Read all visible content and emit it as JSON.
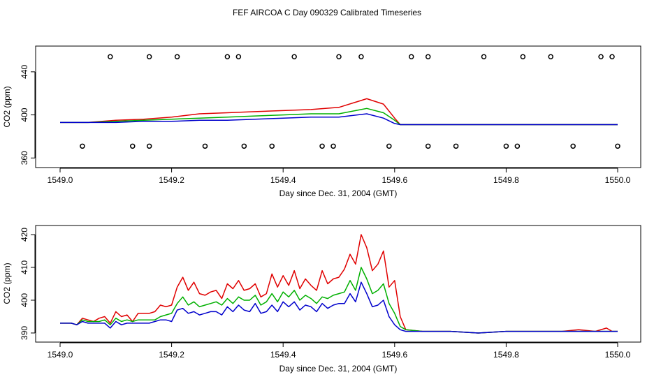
{
  "title": "FEF AIRCOA C  Day 090329  Calibrated Timeseries",
  "colors": {
    "red": "#e00000",
    "green": "#00b000",
    "blue": "#0000cc",
    "axis": "#000000"
  },
  "chart_data": [
    {
      "type": "line",
      "xlabel": "Day since Dec. 31, 2004 (GMT)",
      "ylabel": "CO2 (ppm)",
      "xlim": [
        1549.0,
        1550.0
      ],
      "ylim": [
        355,
        460
      ],
      "xticks": [
        1549.0,
        1549.2,
        1549.4,
        1549.6,
        1549.8,
        1550.0
      ],
      "xtick_labels": [
        "1549.0",
        "1549.2",
        "1549.4",
        "1549.6",
        "1549.8",
        "1550.0"
      ],
      "yticks": [
        360,
        400,
        440
      ],
      "ytick_labels": [
        "360",
        "400",
        "440"
      ],
      "x": [
        1549.0,
        1549.05,
        1549.1,
        1549.15,
        1549.2,
        1549.25,
        1549.3,
        1549.35,
        1549.4,
        1549.45,
        1549.5,
        1549.55,
        1549.58,
        1549.6,
        1549.61,
        1549.7,
        1549.8,
        1549.9,
        1550.0
      ],
      "series": [
        {
          "name": "red",
          "color": "red",
          "values": [
            393,
            393,
            395,
            396,
            398,
            401,
            402,
            403,
            404,
            405,
            407,
            415,
            410,
            397,
            391,
            391,
            391,
            391,
            391
          ]
        },
        {
          "name": "green",
          "color": "green",
          "values": [
            393,
            393,
            394,
            395,
            396,
            397,
            398,
            399,
            400,
            401,
            401,
            406,
            402,
            395,
            391,
            391,
            391,
            391,
            391
          ]
        },
        {
          "name": "blue",
          "color": "blue",
          "values": [
            393,
            393,
            393,
            394,
            394,
            395,
            395,
            396,
            397,
            398,
            398,
            401,
            397,
            392,
            391,
            391,
            391,
            391,
            391
          ]
        }
      ],
      "markers_top": {
        "y": 454,
        "x": [
          1549.09,
          1549.16,
          1549.21,
          1549.3,
          1549.32,
          1549.42,
          1549.5,
          1549.54,
          1549.63,
          1549.66,
          1549.76,
          1549.83,
          1549.88,
          1549.97,
          1549.99
        ]
      },
      "markers_bottom": {
        "y": 371,
        "x": [
          1549.04,
          1549.13,
          1549.16,
          1549.26,
          1549.33,
          1549.38,
          1549.47,
          1549.49,
          1549.59,
          1549.66,
          1549.71,
          1549.8,
          1549.82,
          1549.92,
          1550.0
        ]
      }
    },
    {
      "type": "line",
      "xlabel": "Day since Dec. 31, 2004 (GMT)",
      "ylabel": "CO2 (ppm)",
      "xlim": [
        1549.0,
        1550.0
      ],
      "ylim": [
        388.5,
        421.5
      ],
      "xticks": [
        1549.0,
        1549.2,
        1549.4,
        1549.6,
        1549.8,
        1550.0
      ],
      "xtick_labels": [
        "1549.0",
        "1549.2",
        "1549.4",
        "1549.6",
        "1549.8",
        "1550.0"
      ],
      "yticks": [
        390,
        400,
        410,
        420
      ],
      "ytick_labels": [
        "390",
        "400",
        "410",
        "420"
      ],
      "x": [
        1549.0,
        1549.02,
        1549.03,
        1549.04,
        1549.05,
        1549.06,
        1549.07,
        1549.08,
        1549.09,
        1549.1,
        1549.11,
        1549.12,
        1549.13,
        1549.14,
        1549.15,
        1549.16,
        1549.17,
        1549.18,
        1549.19,
        1549.2,
        1549.21,
        1549.22,
        1549.23,
        1549.24,
        1549.25,
        1549.26,
        1549.27,
        1549.28,
        1549.29,
        1549.3,
        1549.31,
        1549.32,
        1549.33,
        1549.34,
        1549.35,
        1549.36,
        1549.37,
        1549.38,
        1549.39,
        1549.4,
        1549.41,
        1549.42,
        1549.43,
        1549.44,
        1549.45,
        1549.46,
        1549.47,
        1549.48,
        1549.49,
        1549.5,
        1549.51,
        1549.52,
        1549.53,
        1549.54,
        1549.55,
        1549.56,
        1549.57,
        1549.58,
        1549.59,
        1549.6,
        1549.61,
        1549.62,
        1549.65,
        1549.7,
        1549.75,
        1549.8,
        1549.85,
        1549.9,
        1549.93,
        1549.96,
        1549.98,
        1549.99,
        1550.0
      ],
      "series": [
        {
          "name": "red",
          "color": "red",
          "values": [
            393,
            393,
            392.5,
            394.5,
            394,
            393.5,
            394.5,
            395,
            393,
            396.5,
            395,
            395.5,
            393.5,
            396,
            396,
            396,
            396.5,
            398.5,
            398,
            398.5,
            404,
            407,
            403,
            405.5,
            402,
            401.5,
            402.5,
            403,
            400.5,
            405,
            403.5,
            406,
            403,
            403.5,
            405,
            401,
            402,
            408,
            404,
            407.5,
            404.5,
            409,
            403.5,
            406.5,
            404.5,
            403,
            409,
            405,
            406.5,
            407,
            409.5,
            414,
            411,
            420,
            416,
            409,
            411,
            415,
            404,
            406,
            395,
            391,
            390.5,
            390.5,
            390,
            390.5,
            390.5,
            390.5,
            391,
            390.5,
            391.5,
            390.5,
            390.5
          ]
        },
        {
          "name": "green",
          "color": "green",
          "values": [
            393,
            393,
            392.5,
            394,
            393.5,
            393.5,
            393.5,
            394,
            392.5,
            394.5,
            393.5,
            394,
            393.5,
            394,
            394,
            394,
            394,
            395,
            395.5,
            396,
            399,
            401,
            398.5,
            399.5,
            398,
            398.5,
            399,
            399.5,
            398.5,
            400.5,
            399,
            401,
            400,
            400,
            401.5,
            398.5,
            399.5,
            402,
            399.5,
            402.5,
            401,
            403,
            400,
            401.5,
            400.5,
            399,
            401,
            400.5,
            401.5,
            402,
            402.5,
            406,
            403,
            410,
            406.5,
            402,
            403,
            405,
            399,
            396,
            392,
            391,
            390.5,
            390.5,
            390,
            390.5,
            390.5,
            390.5,
            390.5,
            390.5,
            390.5,
            390.5,
            390.5
          ]
        },
        {
          "name": "blue",
          "color": "blue",
          "values": [
            393,
            393,
            392.5,
            393.5,
            393,
            393,
            393,
            393,
            391.5,
            393.5,
            392.5,
            393,
            393,
            393,
            393,
            393,
            393.5,
            394,
            394,
            393.5,
            397,
            397.5,
            396,
            396.5,
            395.5,
            396,
            396.5,
            396.5,
            395.5,
            398,
            396.5,
            398.5,
            397,
            396.5,
            399,
            396,
            396.5,
            398.5,
            396.5,
            399.5,
            398,
            399.5,
            397,
            398.5,
            398,
            396.5,
            399,
            397.5,
            398.5,
            399,
            399,
            402,
            399.5,
            405.5,
            402,
            398,
            398.5,
            400,
            395,
            392.5,
            391,
            390.5,
            390.5,
            390.5,
            390,
            390.5,
            390.5,
            390.5,
            390.5,
            390.5,
            390.5,
            390.5,
            390.5
          ]
        }
      ]
    }
  ]
}
